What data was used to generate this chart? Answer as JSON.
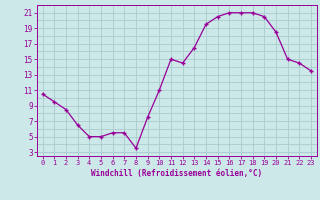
{
  "x": [
    0,
    1,
    2,
    3,
    4,
    5,
    6,
    7,
    8,
    9,
    10,
    11,
    12,
    13,
    14,
    15,
    16,
    17,
    18,
    19,
    20,
    21,
    22,
    23
  ],
  "y": [
    10.5,
    9.5,
    8.5,
    6.5,
    5.0,
    5.0,
    5.5,
    5.5,
    3.5,
    7.5,
    11.0,
    15.0,
    14.5,
    16.5,
    19.5,
    20.5,
    21.0,
    21.0,
    21.0,
    20.5,
    18.5,
    15.0,
    14.5,
    13.5
  ],
  "line_color": "#990099",
  "marker": "+",
  "bg_color": "#cce8e8",
  "grid_color": "#aacccc",
  "xlabel": "Windchill (Refroidissement éolien,°C)",
  "xlabel_color": "#990099",
  "tick_color": "#990099",
  "label_color": "#990099",
  "yticks": [
    3,
    5,
    7,
    9,
    11,
    13,
    15,
    17,
    19,
    21
  ],
  "xticks": [
    0,
    1,
    2,
    3,
    4,
    5,
    6,
    7,
    8,
    9,
    10,
    11,
    12,
    13,
    14,
    15,
    16,
    17,
    18,
    19,
    20,
    21,
    22,
    23
  ],
  "ylim": [
    2.5,
    22.0
  ],
  "xlim": [
    -0.5,
    23.5
  ]
}
